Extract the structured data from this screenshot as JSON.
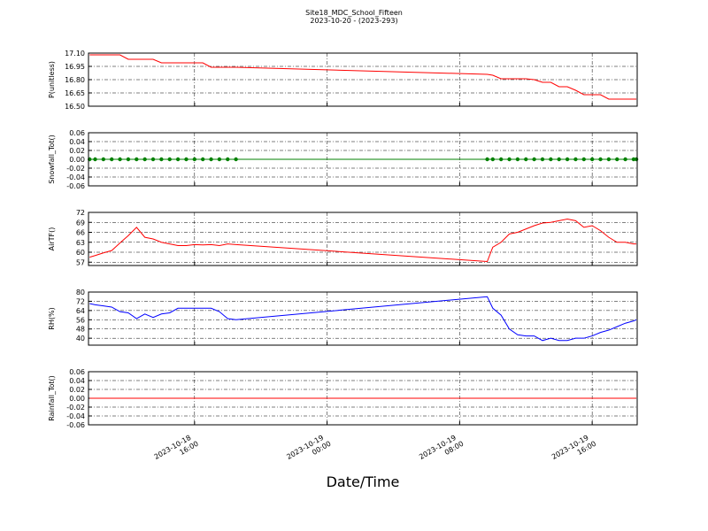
{
  "title": "Site18_MDC_School_Fifteen",
  "subtitle": "2023-10-20 - (2023-293)",
  "xlabel": "Date/Time",
  "x": [
    "2023-10-18 09:40",
    "2023-10-18 10:00",
    "2023-10-18 10:30",
    "2023-10-18 11:00",
    "2023-10-18 11:30",
    "2023-10-18 12:00",
    "2023-10-18 12:30",
    "2023-10-18 13:00",
    "2023-10-18 13:30",
    "2023-10-18 14:00",
    "2023-10-18 14:30",
    "2023-10-18 15:00",
    "2023-10-18 15:30",
    "2023-10-18 16:00",
    "2023-10-18 16:30",
    "2023-10-18 17:00",
    "2023-10-18 17:30",
    "2023-10-18 18:00",
    "2023-10-18 18:30",
    "2023-10-19 09:40",
    "2023-10-19 10:00",
    "2023-10-19 10:30",
    "2023-10-19 11:00",
    "2023-10-19 11:30",
    "2023-10-19 12:00",
    "2023-10-19 12:30",
    "2023-10-19 13:00",
    "2023-10-19 13:30",
    "2023-10-19 14:00",
    "2023-10-19 14:30",
    "2023-10-19 15:00",
    "2023-10-19 15:30",
    "2023-10-19 16:00",
    "2023-10-19 16:30",
    "2023-10-19 17:00",
    "2023-10-19 17:30",
    "2023-10-19 18:00",
    "2023-10-19 18:30",
    "2023-10-19 18:40"
  ],
  "xlim": [
    "2023-10-18 09:36",
    "2023-10-19 18:43"
  ],
  "xticks": [
    "2023-10-18 16:00",
    "2023-10-19 00:00",
    "2023-10-19 08:00",
    "2023-10-19 16:00"
  ],
  "chart_data": [
    {
      "type": "line",
      "ylabel": "P(unitless)",
      "ylim": [
        16.5,
        17.1
      ],
      "grid": true,
      "yticks": [
        {
          "value": 16.5,
          "label": "16.50"
        },
        16.65,
        {
          "value": 16.8,
          "label": "16.80"
        },
        16.95,
        {
          "value": 17.1,
          "label": "17.10"
        }
      ],
      "series": [
        {
          "color": "#ff0000",
          "marker": false,
          "values": [
            17.08,
            17.08,
            17.08,
            17.08,
            17.08,
            17.03,
            17.03,
            17.03,
            17.03,
            16.99,
            16.99,
            16.99,
            16.99,
            16.99,
            16.99,
            16.94,
            16.94,
            16.94,
            16.94,
            16.86,
            16.85,
            16.81,
            16.81,
            16.81,
            16.81,
            16.8,
            16.77,
            16.77,
            16.72,
            16.72,
            16.68,
            16.63,
            16.63,
            16.63,
            16.58,
            16.58,
            16.58,
            16.58,
            16.58
          ]
        }
      ]
    },
    {
      "type": "line",
      "ylabel": "Snowfall_Tot()",
      "ylim": [
        -0.06,
        0.06
      ],
      "grid": true,
      "yticks": [
        -0.06,
        -0.04,
        -0.02,
        {
          "value": 0,
          "label": "0.00"
        },
        0.02,
        0.04,
        0.06
      ],
      "series": [
        {
          "color": "#008000",
          "marker": true,
          "values": [
            0,
            0,
            0,
            0,
            0,
            0,
            0,
            0,
            0,
            0,
            0,
            0,
            0,
            0,
            0,
            0,
            0,
            0,
            0,
            0,
            0,
            0,
            0,
            0,
            0,
            0,
            0,
            0,
            0,
            0,
            0,
            0,
            0,
            0,
            0,
            0,
            0,
            0,
            0
          ]
        }
      ]
    },
    {
      "type": "line",
      "ylabel": "AirTF()",
      "ylim": [
        56,
        72
      ],
      "grid": true,
      "yticks": [
        57,
        60,
        63,
        66,
        69,
        72
      ],
      "series": [
        {
          "color": "#ff0000",
          "marker": false,
          "values": [
            58.5,
            59,
            59.8,
            60.5,
            62.8,
            65,
            67.5,
            64.5,
            64,
            63,
            62.5,
            62,
            62,
            62.3,
            62.2,
            62.3,
            62,
            62.5,
            62.3,
            57.2,
            61.5,
            63,
            65.5,
            66,
            67,
            68,
            68.8,
            69,
            69.5,
            70,
            69.5,
            67.5,
            68,
            66.5,
            64.5,
            63,
            63,
            62.5,
            62.5
          ]
        }
      ]
    },
    {
      "type": "line",
      "ylabel": "RH(%)",
      "ylim": [
        34,
        80
      ],
      "grid": true,
      "yticks": [
        40,
        48,
        56,
        64,
        72,
        80
      ],
      "series": [
        {
          "color": "#0000ff",
          "marker": false,
          "values": [
            70,
            69,
            68,
            67,
            63,
            62,
            57,
            61,
            58,
            61,
            62,
            66,
            66,
            66,
            66,
            66,
            63,
            57,
            56,
            76,
            66,
            60,
            48,
            43,
            42,
            42,
            38,
            40,
            38,
            38,
            40,
            40,
            42,
            45,
            47,
            50,
            53,
            55,
            56
          ]
        }
      ]
    },
    {
      "type": "line",
      "ylabel": "Rainfall_Tot()",
      "ylim": [
        -0.06,
        0.06
      ],
      "grid": true,
      "yticks": [
        -0.06,
        -0.04,
        -0.02,
        {
          "value": 0,
          "label": "0.00"
        },
        0.02,
        0.04,
        0.06
      ],
      "series": [
        {
          "color": "#ff0000",
          "marker": false,
          "values": [
            0,
            0,
            0,
            0,
            0,
            0,
            0,
            0,
            0,
            0,
            0,
            0,
            0,
            0,
            0,
            0,
            0,
            0,
            0,
            0,
            0,
            0,
            0,
            0,
            0,
            0,
            0,
            0,
            0,
            0,
            0,
            0,
            0,
            0,
            0,
            0,
            0,
            0,
            0
          ]
        }
      ]
    }
  ]
}
